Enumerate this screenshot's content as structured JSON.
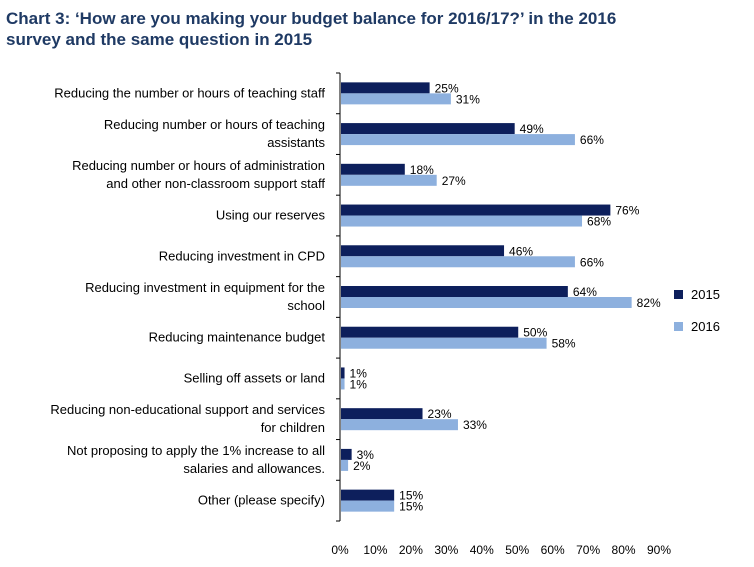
{
  "title": {
    "line1": "Chart 3: ‘How are you making your budget balance for 2016/17?’ in the 2016",
    "line2": "survey and the same question in 2015"
  },
  "chart_data": {
    "type": "bar",
    "orientation": "horizontal",
    "categories": [
      [
        "Reducing the number or hours of teaching staff"
      ],
      [
        "Reducing number or hours of teaching",
        "assistants"
      ],
      [
        "Reducing number or hours of administration",
        "and other non-classroom support staff"
      ],
      [
        "Using our reserves"
      ],
      [
        "Reducing investment in CPD"
      ],
      [
        "Reducing investment in equipment for the",
        "school"
      ],
      [
        "Reducing maintenance budget"
      ],
      [
        "Selling off assets or land"
      ],
      [
        "Reducing non-educational support and services",
        "for children"
      ],
      [
        "Not proposing to apply the 1% increase to all",
        "salaries and allowances."
      ],
      [
        "Other (please specify)"
      ]
    ],
    "series": [
      {
        "name": "2015",
        "color": "#0d1f5c",
        "values": [
          25,
          49,
          18,
          76,
          46,
          64,
          50,
          1,
          23,
          3,
          15
        ]
      },
      {
        "name": "2016",
        "color": "#8db0de",
        "values": [
          31,
          66,
          27,
          68,
          66,
          82,
          58,
          1,
          33,
          2,
          15
        ]
      }
    ],
    "value_suffix": "%",
    "xlim": [
      0,
      90
    ],
    "xticks": [
      0,
      10,
      20,
      30,
      40,
      50,
      60,
      70,
      80,
      90
    ],
    "tick_suffix": "%",
    "grid": false,
    "legend_position": "right"
  }
}
